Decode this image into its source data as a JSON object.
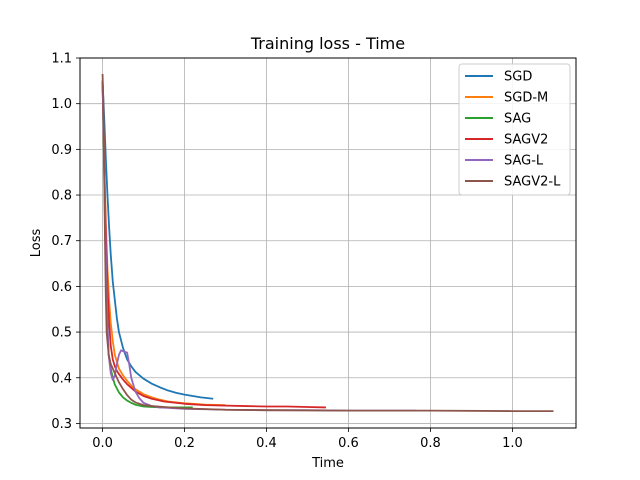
{
  "chart_data": {
    "type": "line",
    "title": "Training loss - Time",
    "xlabel": "Time",
    "ylabel": "Loss",
    "xlim": [
      -0.055,
      1.155
    ],
    "ylim": [
      0.29,
      1.1
    ],
    "xticks": [
      0.0,
      0.2,
      0.4,
      0.6,
      0.8,
      1.0
    ],
    "xtick_labels": [
      "0.0",
      "0.2",
      "0.4",
      "0.6",
      "0.8",
      "1.0"
    ],
    "yticks": [
      0.3,
      0.4,
      0.5,
      0.6,
      0.7,
      0.8,
      0.9,
      1.0,
      1.1
    ],
    "ytick_labels": [
      "0.3",
      "0.4",
      "0.5",
      "0.6",
      "0.7",
      "0.8",
      "0.9",
      "1.0",
      "1.1"
    ],
    "grid": true,
    "legend_position": "top-right",
    "series": [
      {
        "name": "SGD",
        "color": "#1f77b4",
        "x": [
          0.0,
          0.004,
          0.008,
          0.012,
          0.016,
          0.02,
          0.025,
          0.03,
          0.035,
          0.04,
          0.05,
          0.06,
          0.07,
          0.08,
          0.1,
          0.12,
          0.14,
          0.16,
          0.18,
          0.2,
          0.22,
          0.24,
          0.27
        ],
        "y": [
          1.05,
          0.97,
          0.88,
          0.8,
          0.73,
          0.67,
          0.61,
          0.57,
          0.53,
          0.5,
          0.465,
          0.44,
          0.425,
          0.413,
          0.398,
          0.387,
          0.379,
          0.372,
          0.367,
          0.363,
          0.36,
          0.357,
          0.354
        ]
      },
      {
        "name": "SGD-M",
        "color": "#ff7f0e",
        "x": [
          0.0,
          0.004,
          0.008,
          0.012,
          0.016,
          0.02,
          0.025,
          0.03,
          0.04,
          0.05,
          0.06,
          0.07,
          0.08,
          0.1,
          0.12,
          0.14,
          0.16,
          0.18,
          0.2,
          0.22,
          0.25,
          0.3
        ],
        "y": [
          1.05,
          0.88,
          0.74,
          0.64,
          0.57,
          0.52,
          0.48,
          0.45,
          0.42,
          0.405,
          0.393,
          0.383,
          0.375,
          0.364,
          0.357,
          0.352,
          0.348,
          0.346,
          0.344,
          0.343,
          0.341,
          0.34
        ]
      },
      {
        "name": "SAG",
        "color": "#2ca02c",
        "x": [
          0.0,
          0.003,
          0.006,
          0.009,
          0.012,
          0.015,
          0.02,
          0.025,
          0.03,
          0.04,
          0.05,
          0.06,
          0.07,
          0.08,
          0.1,
          0.12,
          0.15,
          0.18,
          0.22
        ],
        "y": [
          1.05,
          0.9,
          0.74,
          0.6,
          0.51,
          0.45,
          0.42,
          0.4,
          0.385,
          0.368,
          0.357,
          0.35,
          0.345,
          0.341,
          0.337,
          0.336,
          0.335,
          0.335,
          0.335
        ]
      },
      {
        "name": "SAGV2",
        "color": "#d62728",
        "x": [
          0.0,
          0.004,
          0.008,
          0.012,
          0.016,
          0.02,
          0.025,
          0.03,
          0.035,
          0.04,
          0.05,
          0.06,
          0.08,
          0.1,
          0.12,
          0.15,
          0.2,
          0.25,
          0.3,
          0.35,
          0.4,
          0.45,
          0.5,
          0.545
        ],
        "y": [
          1.05,
          0.87,
          0.72,
          0.6,
          0.52,
          0.47,
          0.44,
          0.425,
          0.415,
          0.408,
          0.396,
          0.386,
          0.37,
          0.36,
          0.354,
          0.348,
          0.343,
          0.34,
          0.339,
          0.338,
          0.337,
          0.337,
          0.336,
          0.335
        ]
      },
      {
        "name": "SAG-L",
        "color": "#9467bd",
        "x": [
          0.0,
          0.003,
          0.006,
          0.009,
          0.012,
          0.015,
          0.02,
          0.025,
          0.03,
          0.035,
          0.04,
          0.045,
          0.05,
          0.06,
          0.065,
          0.07,
          0.08,
          0.09,
          0.1,
          0.12,
          0.14,
          0.16,
          0.18,
          0.2,
          0.25,
          0.3,
          0.4,
          0.5,
          0.6,
          0.7,
          0.765
        ],
        "y": [
          1.05,
          0.92,
          0.77,
          0.63,
          0.52,
          0.45,
          0.41,
          0.395,
          0.405,
          0.43,
          0.45,
          0.46,
          0.458,
          0.455,
          0.43,
          0.4,
          0.37,
          0.355,
          0.345,
          0.338,
          0.335,
          0.334,
          0.333,
          0.332,
          0.331,
          0.33,
          0.329,
          0.329,
          0.328,
          0.328,
          0.328
        ]
      },
      {
        "name": "SAGV2-L",
        "color": "#8c564b",
        "x": [
          0.0,
          0.002,
          0.004,
          0.006,
          0.008,
          0.01,
          0.015,
          0.02,
          0.03,
          0.04,
          0.05,
          0.06,
          0.07,
          0.08,
          0.1,
          0.12,
          0.15,
          0.2,
          0.3,
          0.4,
          0.6,
          0.8,
          1.0,
          1.1
        ],
        "y": [
          1.065,
          1.0,
          0.85,
          0.7,
          0.58,
          0.5,
          0.45,
          0.43,
          0.41,
          0.39,
          0.375,
          0.362,
          0.352,
          0.346,
          0.34,
          0.338,
          0.336,
          0.333,
          0.33,
          0.329,
          0.328,
          0.328,
          0.327,
          0.327
        ]
      }
    ]
  }
}
